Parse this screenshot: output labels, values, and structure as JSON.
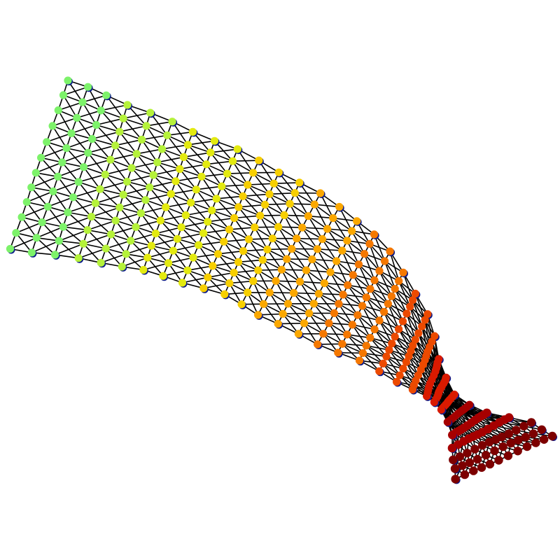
{
  "figure": {
    "kind": "mesh-graph",
    "background": "#ffffff",
    "edge_color": "#000000",
    "node_outline_color": "#0b1a8a",
    "colormap": "jet",
    "node_color_sequence": [
      "#7df26a",
      "#b5f23a",
      "#e3ea10",
      "#f7cf00",
      "#fba800",
      "#f57800",
      "#ec4a00",
      "#d91a00",
      "#a60000",
      "#7d0000"
    ]
  }
}
